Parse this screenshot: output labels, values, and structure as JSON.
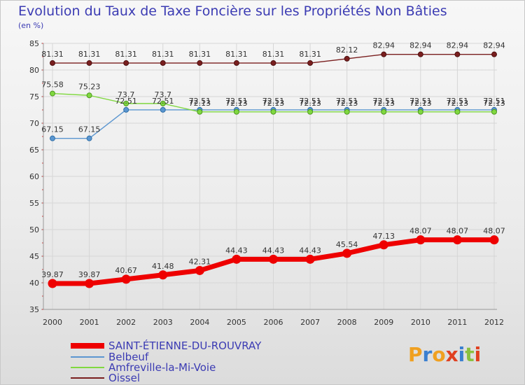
{
  "chart_data": {
    "type": "line",
    "title": "Evolution du Taux de Taxe Foncière sur les Propriétés Non Bâties",
    "ylabel": "(en %)",
    "xlabel": "",
    "ylim": [
      35,
      85
    ],
    "yticks": [
      35,
      40,
      45,
      50,
      55,
      60,
      65,
      70,
      75,
      80,
      85
    ],
    "categories": [
      "2000",
      "2001",
      "2002",
      "2003",
      "2004",
      "2005",
      "2006",
      "2007",
      "2008",
      "2009",
      "2010",
      "2011",
      "2012"
    ],
    "grid": true,
    "legend_position": "bottom-left",
    "series": [
      {
        "name": "SAINT-ÉTIENNE-DU-ROUVRAY",
        "color": "#ee0000",
        "style": "thick",
        "values": [
          39.87,
          39.87,
          40.67,
          41.48,
          42.31,
          44.43,
          44.43,
          44.43,
          45.54,
          47.13,
          48.07,
          48.07,
          48.07
        ],
        "labels": [
          "39.87",
          "39.87",
          "40.67",
          "41.48",
          "42.31",
          "44.43",
          "44.43",
          "44.43",
          "45.54",
          "47.13",
          "48.07",
          "48.07",
          "48.07"
        ]
      },
      {
        "name": "Belbeuf",
        "color": "#5b96d0",
        "style": "thin",
        "values": [
          67.15,
          67.15,
          72.51,
          72.51,
          72.51,
          72.51,
          72.51,
          72.51,
          72.51,
          72.51,
          72.51,
          72.51,
          72.51
        ],
        "labels": [
          "67.15",
          "67.15",
          "72.51",
          "72.51",
          "72.51",
          "72.51",
          "72.51",
          "72.51",
          "72.51",
          "72.51",
          "72.51",
          "72.51",
          "72.51"
        ]
      },
      {
        "name": "Amfreville-la-Mi-Voie",
        "color": "#80d840",
        "style": "thin",
        "values": [
          75.58,
          75.23,
          73.7,
          73.7,
          72.13,
          72.13,
          72.13,
          72.13,
          72.13,
          72.13,
          72.13,
          72.13,
          72.13
        ],
        "labels": [
          "75.58",
          "75.23",
          "73.7",
          "73.7",
          "72.13",
          "72.13",
          "72.13",
          "72.13",
          "72.13",
          "72.13",
          "72.13",
          "72.13",
          "72.13"
        ]
      },
      {
        "name": "Oissel",
        "color": "#7a1f1f",
        "style": "thin",
        "values": [
          81.31,
          81.31,
          81.31,
          81.31,
          81.31,
          81.31,
          81.31,
          81.31,
          82.12,
          82.94,
          82.94,
          82.94,
          82.94
        ],
        "labels": [
          "81.31",
          "81.31",
          "81.31",
          "81.31",
          "81.31",
          "81.31",
          "81.31",
          "81.31",
          "82.12",
          "82.94",
          "82.94",
          "82.94",
          "82.94"
        ]
      }
    ]
  },
  "logo": {
    "text": "Proxiti"
  }
}
